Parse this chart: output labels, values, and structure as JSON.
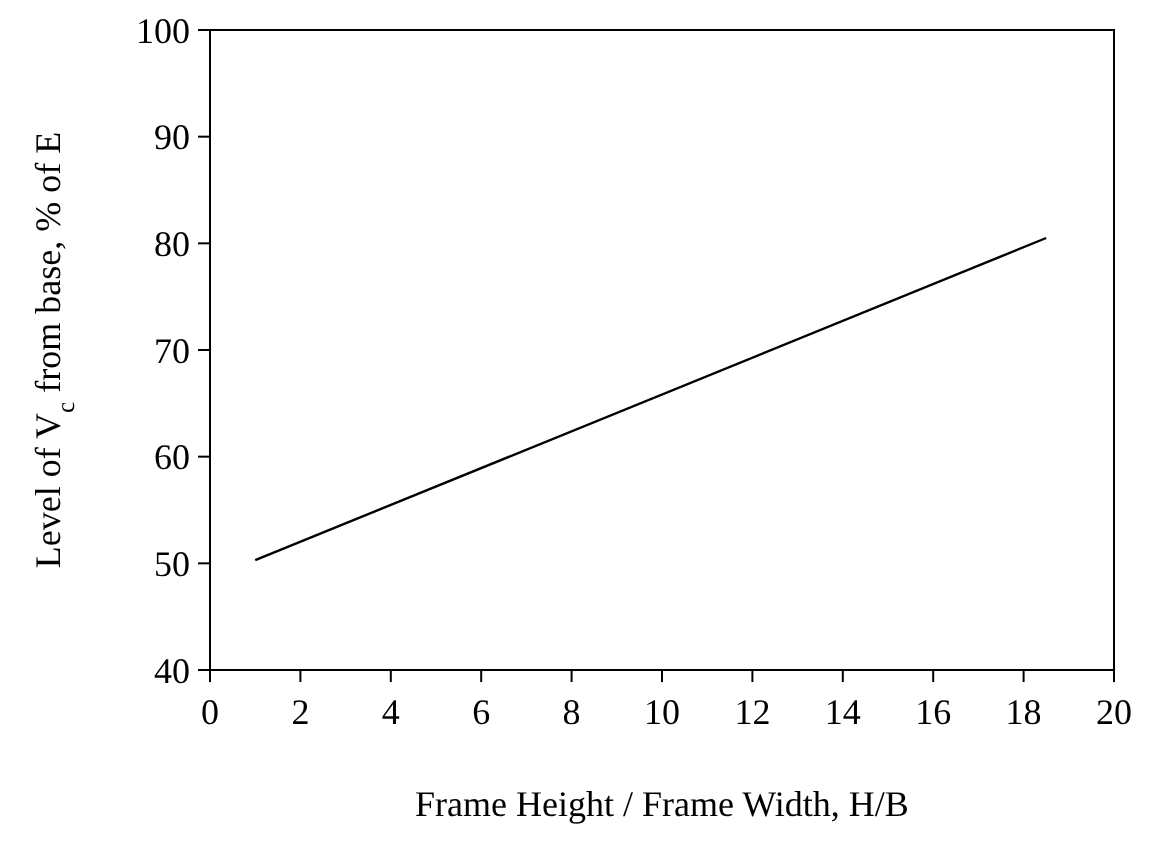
{
  "chart_data": {
    "type": "line",
    "xlabel": "Frame Height / Frame Width, H/B",
    "ylabel": "Level of V$_{c}$ from base, % of E",
    "x": [
      1,
      18.5
    ],
    "series": [
      {
        "color": "#000000",
        "values": [
          50.3,
          80.5
        ]
      }
    ],
    "xlim": [
      0,
      20
    ],
    "xticks": [
      0,
      2,
      4,
      6,
      8,
      10,
      12,
      14,
      16,
      18,
      20
    ],
    "ylim": [
      40,
      100
    ],
    "yticks": [
      40,
      50,
      60,
      70,
      80,
      90,
      100
    ],
    "grid": false,
    "marker": "none",
    "line_style": "solid"
  }
}
